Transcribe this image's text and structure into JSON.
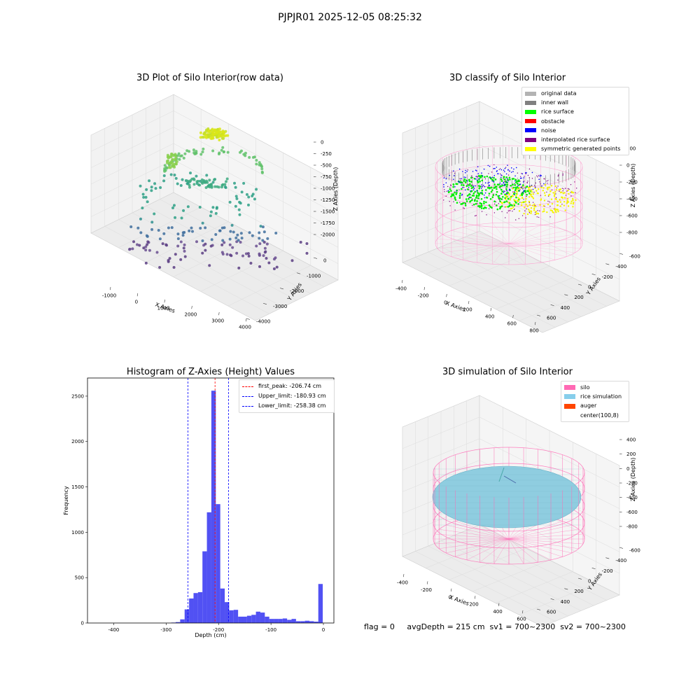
{
  "suptitle": "PJPJR01 2025-12-05 08:25:32",
  "panels": {
    "raw": {
      "title": "3D Plot of Silo Interior(row data)",
      "xlabel": "X Axies",
      "ylabel": "Y Axies",
      "zlabel": "Z Axies (Depth)",
      "xticks": [
        "-1000",
        "0",
        "1000",
        "2000",
        "3000",
        "4000"
      ],
      "yticks": [
        "0",
        "-1000",
        "-2000",
        "-3000",
        "-4000"
      ],
      "zticks": [
        "0",
        "-250",
        "-500",
        "-750",
        "-1000",
        "-1250",
        "-1500",
        "-1750",
        "-2000"
      ]
    },
    "classify": {
      "title": "3D classify of Silo Interior",
      "xlabel": "X Axies",
      "ylabel": "Y Axies",
      "zlabel": "Z Axies (Depth)",
      "xticks": [
        "-400",
        "-200",
        "0",
        "200",
        "400",
        "600",
        "800"
      ],
      "yticks": [
        "600",
        "400",
        "200",
        "0",
        "-200",
        "-400",
        "-600"
      ],
      "zticks": [
        "200",
        "0",
        "-200",
        "-400",
        "-600",
        "-800"
      ],
      "legend": [
        {
          "label": "original data",
          "color": "#b3b3b3"
        },
        {
          "label": "inner wall",
          "color": "#808080"
        },
        {
          "label": "rice surface",
          "color": "#00ff00"
        },
        {
          "label": "obstacle",
          "color": "#ff0000"
        },
        {
          "label": "noise",
          "color": "#0000ff"
        },
        {
          "label": "interpolated rice surface",
          "color": "#800080"
        },
        {
          "label": "symmetric generated points",
          "color": "#ffff00"
        }
      ]
    },
    "histogram": {
      "title": "Histogram of Z-Axies (Height) Values",
      "xlabel": "Depth (cm)",
      "ylabel": "Frequency",
      "legend": [
        {
          "label": "first_peak: -206.74 cm",
          "color": "#ff0000"
        },
        {
          "label": "Upper_limit: -180.93 cm",
          "color": "#0000ff"
        },
        {
          "label": "Lower_limit: -258.38 cm",
          "color": "#0000ff"
        }
      ]
    },
    "simulation": {
      "title": "3D simulation of Silo Interior",
      "xlabel": "X Axies",
      "ylabel": "Y Axies",
      "zlabel": "Z Axies (Depth)",
      "xticks": [
        "-400",
        "-200",
        "0",
        "200",
        "400",
        "600"
      ],
      "yticks": [
        "600",
        "400",
        "200",
        "0",
        "-200",
        "-400",
        "-600"
      ],
      "zticks": [
        "400",
        "200",
        "0",
        "-200",
        "-400",
        "-600",
        "-800"
      ],
      "legend": [
        {
          "label": "silo",
          "color": "#ff69b4"
        },
        {
          "label": "rice simulation",
          "color": "#87ceeb"
        },
        {
          "label": "auger",
          "color": "#ff4500"
        },
        {
          "label": "center(100,8)",
          "color": "none"
        }
      ],
      "status": "flag = 0     avgDepth = 215 cm  sv1 = 700~2300  sv2 = 700~2300"
    }
  },
  "chart_data": [
    {
      "type": "scatter",
      "title": "3D Plot of Silo Interior(row data)",
      "xlabel": "X Axies",
      "ylabel": "Y Axies",
      "zlabel": "Z Axies (Depth)",
      "xlim": [
        -1500,
        4000
      ],
      "ylim": [
        -4500,
        500
      ],
      "zlim": [
        -2100,
        100
      ],
      "series": [
        {
          "values": [
            [
              1000,
              0,
              -80
            ],
            [
              900,
              0,
              -60
            ],
            [
              1100,
              0,
              -50
            ],
            [
              1000,
              -100,
              -70
            ],
            [
              1050,
              50,
              -90
            ],
            [
              300,
              -300,
              -450
            ],
            [
              -300,
              -1000,
              -1050
            ],
            [
              2300,
              -1500,
              -1150
            ],
            [
              -400,
              -1500,
              -1400
            ],
            [
              0,
              -2000,
              -1500
            ],
            [
              500,
              -2500,
              -1600
            ],
            [
              1000,
              -3000,
              -1700
            ],
            [
              1500,
              -3500,
              -1850
            ],
            [
              3500,
              -1000,
              -1900
            ]
          ]
        }
      ]
    },
    {
      "type": "scatter",
      "title": "3D classify of Silo Interior",
      "xlabel": "X Axies",
      "ylabel": "Y Axies",
      "zlabel": "Z Axies (Depth)",
      "xlim": [
        -500,
        800
      ],
      "ylim": [
        -700,
        700
      ],
      "zlim": [
        -900,
        300
      ],
      "series": [
        {
          "name": "inner wall",
          "values": [
            [
              -450,
              0,
              0
            ],
            [
              750,
              0,
              0
            ],
            [
              100,
              600,
              0
            ],
            [
              100,
              -600,
              0
            ]
          ]
        },
        {
          "name": "rice surface",
          "values": [
            [
              0,
              100,
              -220
            ],
            [
              100,
              0,
              -210
            ],
            [
              -100,
              -100,
              -230
            ]
          ]
        },
        {
          "name": "noise",
          "values": [
            [
              50,
              150,
              -200
            ],
            [
              -150,
              50,
              -260
            ]
          ]
        },
        {
          "name": "symmetric generated points",
          "values": [
            [
              300,
              -100,
              -210
            ],
            [
              400,
              0,
              -220
            ],
            [
              250,
              -200,
              -230
            ]
          ]
        }
      ]
    },
    {
      "type": "bar",
      "title": "Histogram of Z-Axies (Height) Values",
      "xlabel": "Depth (cm)",
      "ylabel": "Frequency",
      "xlim": [
        -450,
        20
      ],
      "ylim": [
        0,
        2700
      ],
      "xticks": [
        -400,
        -300,
        -200,
        -100,
        0
      ],
      "yticks": [
        0,
        500,
        1000,
        1500,
        2000,
        2500
      ],
      "bin_width": 8.5,
      "bins": [
        {
          "x": -286,
          "y": 5
        },
        {
          "x": -277.5,
          "y": 10
        },
        {
          "x": -269,
          "y": 40
        },
        {
          "x": -260.5,
          "y": 150
        },
        {
          "x": -252,
          "y": 270
        },
        {
          "x": -243.5,
          "y": 330
        },
        {
          "x": -235,
          "y": 340
        },
        {
          "x": -226.5,
          "y": 790
        },
        {
          "x": -218,
          "y": 1220
        },
        {
          "x": -209.5,
          "y": 2560
        },
        {
          "x": -201,
          "y": 1310
        },
        {
          "x": -192.5,
          "y": 380
        },
        {
          "x": -184,
          "y": 230
        },
        {
          "x": -175.5,
          "y": 140
        },
        {
          "x": -167,
          "y": 145
        },
        {
          "x": -158.5,
          "y": 70
        },
        {
          "x": -150,
          "y": 70
        },
        {
          "x": -141.5,
          "y": 80
        },
        {
          "x": -133,
          "y": 90
        },
        {
          "x": -124.5,
          "y": 125
        },
        {
          "x": -116,
          "y": 115
        },
        {
          "x": -107.5,
          "y": 70
        },
        {
          "x": -99,
          "y": 45
        },
        {
          "x": -90.5,
          "y": 45
        },
        {
          "x": -82,
          "y": 45
        },
        {
          "x": -73.5,
          "y": 50
        },
        {
          "x": -65,
          "y": 35
        },
        {
          "x": -56.5,
          "y": 45
        },
        {
          "x": -48,
          "y": 20
        },
        {
          "x": -39.5,
          "y": 20
        },
        {
          "x": -31,
          "y": 25
        },
        {
          "x": -22.5,
          "y": 20
        },
        {
          "x": -14,
          "y": 15
        },
        {
          "x": -5.5,
          "y": 430
        }
      ],
      "vlines": [
        {
          "label": "first_peak: -206.74 cm",
          "x": -206.74,
          "color": "#ff0000"
        },
        {
          "label": "Upper_limit: -180.93 cm",
          "x": -180.93,
          "color": "#0000ff"
        },
        {
          "label": "Lower_limit: -258.38 cm",
          "x": -258.38,
          "color": "#0000ff"
        }
      ],
      "bar_color": "#4848f2"
    },
    {
      "type": "scatter",
      "title": "3D simulation of Silo Interior",
      "xlabel": "X Axies",
      "ylabel": "Y Axies",
      "zlabel": "Z Axies (Depth)",
      "xlim": [
        -500,
        700
      ],
      "ylim": [
        -700,
        700
      ],
      "zlim": [
        -900,
        450
      ],
      "series": [
        {
          "name": "rice simulation",
          "values": [
            [
              100,
              8,
              -215
            ]
          ]
        }
      ]
    }
  ]
}
